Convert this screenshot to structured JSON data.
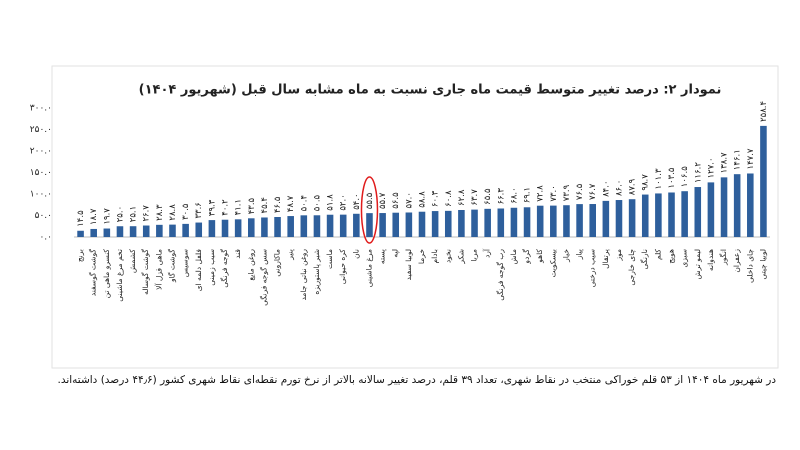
{
  "chart_data": {
    "type": "bar",
    "title": "نمودار ۲: درصد تغییر متوسط قیمت ماه جاری نسبت به ماه مشابه سال قبل (شهریور ۱۴۰۴)",
    "categories": [
      "برنج",
      "گوشت گوسفند",
      "کنسرو ماهی تن",
      "تخم مرغ ماشینی",
      "کشمش",
      "گوشت گوساله",
      "ماهی قزل آلا",
      "گوشت گاو",
      "سوسیس",
      "فلفل دلمه ای",
      "سیب زمینی",
      "گوجه فرنگی",
      "قند",
      "روغن مایع",
      "سس گوجه فرنگی",
      "ماکارونی",
      "پنیر",
      "روغن نباتی جامد",
      "شیر پاستوریزه",
      "ماست",
      "کره حیوانی",
      "نان",
      "مرغ ماشینی",
      "پسته",
      "لپه",
      "لوبیا سفید",
      "خرما",
      "بادام",
      "نخود",
      "شکر",
      "مربا",
      "آرد",
      "رب گوجه فرنگی",
      "ماش",
      "گردو",
      "کاهو",
      "بیسکویت",
      "خیار",
      "پیاز",
      "سیب درختی",
      "پرتقال",
      "موز",
      "چای خارجی",
      "نارنگی",
      "کلم",
      "هویج",
      "سبزی",
      "لیمو ترش",
      "هندوانه",
      "انگور",
      "زعفران",
      "چای داخلی",
      "لوبیا چیتی"
    ],
    "values": [
      14.5,
      18.7,
      19.7,
      25.0,
      25.1,
      26.7,
      28.3,
      28.8,
      30.5,
      33.6,
      39.3,
      40.2,
      41.1,
      43.5,
      45.4,
      46.5,
      48.7,
      50.4,
      50.5,
      51.8,
      52.0,
      54.0,
      55.5,
      55.7,
      56.5,
      57.0,
      58.8,
      60.3,
      60.8,
      62.8,
      63.7,
      65.5,
      66.3,
      68.0,
      69.1,
      72.8,
      73.0,
      73.9,
      76.5,
      76.7,
      84.0,
      86.0,
      87.9,
      98.7,
      101.3,
      103.5,
      106.5,
      116.2,
      127.0,
      138.7,
      146.1,
      147.7,
      258.4
    ],
    "value_labels": [
      "۱۴.۵",
      "۱۸.۷",
      "۱۹.۷",
      "۲۵.۰",
      "۲۵.۱",
      "۲۶.۷",
      "۲۸.۳",
      "۲۸.۸",
      "۳۰.۵",
      "۳۳.۶",
      "۳۹.۳",
      "۴۰.۲",
      "۴۱.۱",
      "۴۳.۵",
      "۴۵.۴",
      "۴۶.۵",
      "۴۸.۷",
      "۵۰.۴",
      "۵۰.۵",
      "۵۱.۸",
      "۵۲.۰",
      "۵۴.۰",
      "۵۵.۵",
      "۵۵.۷",
      "۵۶.۵",
      "۵۷.۰",
      "۵۸.۸",
      "۶۰.۳",
      "۶۰.۸",
      "۶۲.۸",
      "۶۳.۷",
      "۶۵.۵",
      "۶۶.۳",
      "۶۸.۰",
      "۶۹.۱",
      "۷۲.۸",
      "۷۳.۰",
      "۷۳.۹",
      "۷۶.۵",
      "۷۶.۷",
      "۸۴.۰",
      "۸۶.۰",
      "۸۷.۹",
      "۹۸.۷",
      "۱۰۱.۳",
      "۱۰۳.۵",
      "۱۰۶.۵",
      "۱۱۶.۲",
      "۱۲۷.۰",
      "۱۳۸.۷",
      "۱۴۶.۱",
      "۱۴۷.۷",
      "۲۵۸.۴"
    ],
    "color": "#2e5f9c",
    "ylim": [
      0,
      300
    ],
    "yticks": [
      {
        "value": 0,
        "label": "۰.۰"
      },
      {
        "value": 50,
        "label": "۵۰.۰"
      },
      {
        "value": 100,
        "label": "۱۰۰.۰"
      },
      {
        "value": 150,
        "label": "۱۵۰.۰"
      },
      {
        "value": 200,
        "label": "۲۰۰.۰"
      },
      {
        "value": 250,
        "label": "۲۵۰.۰"
      },
      {
        "value": 300,
        "label": "۳۰۰.۰"
      }
    ],
    "grid": false,
    "note": "در شهریور ماه ۱۴۰۴ از ۵۳ قلم خوراکی منتخب در نقاط شهری، تعداد ۳۹ قلم، درصد تغییر سالانه بالاتر از نرخ تورم نقطه‌ای نقاط شهری کشور (۴۴٫۶ درصد) داشته‌اند."
  }
}
